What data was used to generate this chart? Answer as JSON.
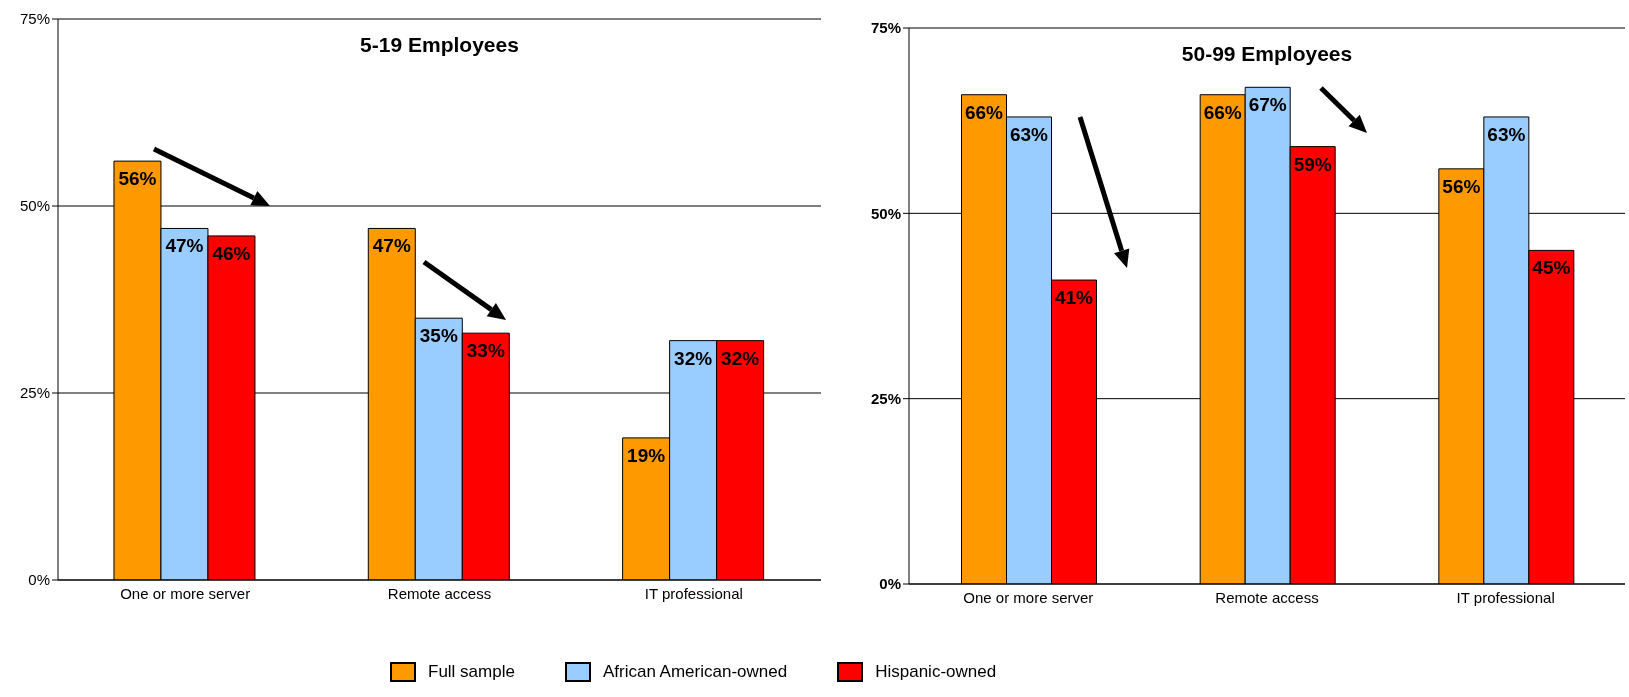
{
  "chart_data": [
    {
      "type": "bar",
      "title": "5-19 Employees",
      "categories": [
        "One or more server",
        "Remote access",
        "IT professional"
      ],
      "series": [
        {
          "name": "Full sample",
          "color": "#ff9900",
          "values": [
            56,
            47,
            19
          ],
          "value_labels": [
            "56%",
            "47%",
            "19%"
          ]
        },
        {
          "name": "African American-owned",
          "color": "#99ccff",
          "values": [
            47,
            35,
            32
          ],
          "value_labels": [
            "47%",
            "35%",
            "32%"
          ]
        },
        {
          "name": "Hispanic-owned",
          "color": "#ff0000",
          "values": [
            46,
            33,
            32
          ],
          "value_labels": [
            "46%",
            "33%",
            "32%"
          ]
        }
      ],
      "ylim": [
        0,
        75
      ],
      "yticks": [
        {
          "value": 0,
          "label": "0%"
        },
        {
          "value": 25,
          "label": "25%"
        },
        {
          "value": 50,
          "label": "50%"
        },
        {
          "value": 75,
          "label": "75%"
        }
      ],
      "grid": "y",
      "legend": "bottom"
    },
    {
      "type": "bar",
      "title": "50-99 Employees",
      "categories": [
        "One or more server",
        "Remote access",
        "IT professional"
      ],
      "series": [
        {
          "color": "#ff9900",
          "values": [
            66,
            66,
            56
          ],
          "value_labels": [
            "66%",
            "66%",
            "56%"
          ]
        },
        {
          "color": "#99ccff",
          "values": [
            63,
            67,
            63
          ],
          "value_labels": [
            "63%",
            "67%",
            "63%"
          ]
        },
        {
          "color": "#ff0000",
          "values": [
            41,
            59,
            45
          ],
          "value_labels": [
            "41%",
            "59%",
            "45%"
          ]
        }
      ],
      "ylim": [
        0,
        75
      ],
      "yticks": [
        {
          "value": 0,
          "label": "0%"
        },
        {
          "value": 25,
          "label": "25%"
        },
        {
          "value": 50,
          "label": "50%"
        },
        {
          "value": 75,
          "label": "75%"
        }
      ],
      "grid": "y"
    }
  ]
}
